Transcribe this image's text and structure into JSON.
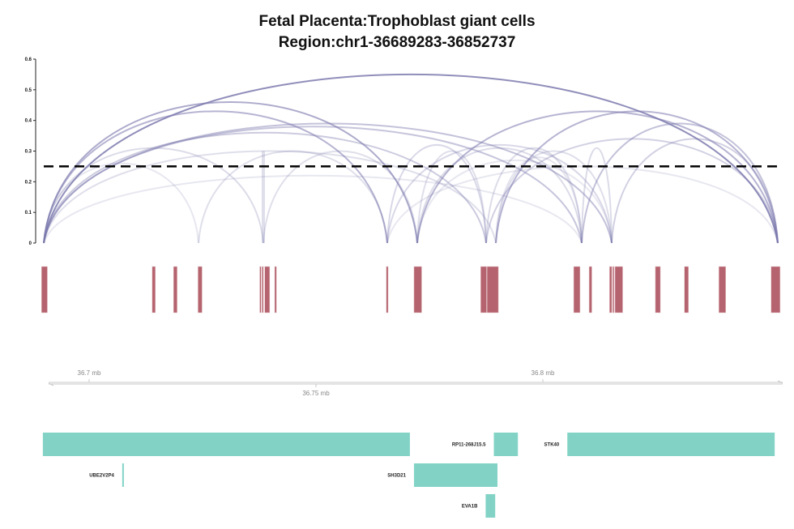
{
  "title": {
    "line1": "Fetal Placenta:Trophoblast giant cells",
    "line2": "Region:chr1-36689283-36852737"
  },
  "chart_data": {
    "type": "arc",
    "region": {
      "chrom": "chr1",
      "start": 36689283,
      "end": 36852737
    },
    "yaxis": {
      "range": [
        0,
        0.6
      ],
      "ticks": [
        0,
        0.1,
        0.2,
        0.3,
        0.4,
        0.5,
        0.6
      ],
      "tick_labels": [
        "0",
        "0.1",
        "0.2",
        "0.3",
        "0.4",
        "0.5",
        "0.6"
      ]
    },
    "threshold": 0.25,
    "colors": {
      "arc": "#7b78ad",
      "threshold": "#000000",
      "peak": "#b5636e",
      "gene": "#82d3c6",
      "axis": "#c8c8c8"
    },
    "arcs": [
      {
        "start": 36690000,
        "end": 36772321,
        "score": 0.46
      },
      {
        "start": 36690000,
        "end": 36765714,
        "score": 0.43
      },
      {
        "start": 36690000,
        "end": 36815179,
        "score": 0.39
      },
      {
        "start": 36690000,
        "end": 36808571,
        "score": 0.38
      },
      {
        "start": 36690000,
        "end": 36787500,
        "score": 0.36
      },
      {
        "start": 36690000,
        "end": 36851786,
        "score": 0.55
      },
      {
        "start": 36690000,
        "end": 36724107,
        "score": 0.26
      },
      {
        "start": 36690000,
        "end": 36789643,
        "score": 0.3
      },
      {
        "start": 36690000,
        "end": 36738393,
        "score": 0.31
      },
      {
        "start": 36690000,
        "end": 36808571,
        "score": 0.22
      },
      {
        "start": 36724107,
        "end": 36765714,
        "score": 0.3
      },
      {
        "start": 36738393,
        "end": 36738393,
        "score": 0.3
      },
      {
        "start": 36738393,
        "end": 36772321,
        "score": 0.3
      },
      {
        "start": 36765714,
        "end": 36815179,
        "score": 0.32
      },
      {
        "start": 36772321,
        "end": 36808571,
        "score": 0.31
      },
      {
        "start": 36772321,
        "end": 36851786,
        "score": 0.43
      },
      {
        "start": 36765714,
        "end": 36787500,
        "score": 0.32
      },
      {
        "start": 36772321,
        "end": 36787500,
        "score": 0.3
      },
      {
        "start": 36787500,
        "end": 36808571,
        "score": 0.31
      },
      {
        "start": 36789643,
        "end": 36851786,
        "score": 0.43
      },
      {
        "start": 36789643,
        "end": 36815179,
        "score": 0.3
      },
      {
        "start": 36787500,
        "end": 36851786,
        "score": 0.34
      },
      {
        "start": 36808571,
        "end": 36851786,
        "score": 0.39
      },
      {
        "start": 36815179,
        "end": 36851786,
        "score": 0.34
      },
      {
        "start": 36808571,
        "end": 36815179,
        "score": 0.31
      },
      {
        "start": 36789643,
        "end": 36808571,
        "score": 0.28
      },
      {
        "start": 36765714,
        "end": 36851786,
        "score": 0.25
      },
      {
        "start": 36772321,
        "end": 36815179,
        "score": 0.27
      }
    ],
    "peaks": [
      [
        36689500,
        36690800
      ],
      [
        36713900,
        36714600
      ],
      [
        36718600,
        36719400
      ],
      [
        36724000,
        36724900
      ],
      [
        36737600,
        36737900
      ],
      [
        36738100,
        36738400
      ],
      [
        36738700,
        36739800
      ],
      [
        36740900,
        36741300
      ],
      [
        36765500,
        36765900
      ],
      [
        36771600,
        36773300
      ],
      [
        36786300,
        36787600
      ],
      [
        36787700,
        36790200
      ],
      [
        36806800,
        36808200
      ],
      [
        36810200,
        36810800
      ],
      [
        36814700,
        36815200
      ],
      [
        36815400,
        36815700
      ],
      [
        36815900,
        36817600
      ],
      [
        36824800,
        36825900
      ],
      [
        36831200,
        36832100
      ],
      [
        36838800,
        36840300
      ],
      [
        36850300,
        36852300
      ]
    ],
    "genome_axis": {
      "ticks": [
        36700000,
        36750000,
        36800000
      ],
      "tick_labels": [
        "36.7 mb",
        "36.75 mb",
        "36.8 mb"
      ],
      "label_side": [
        "top",
        "bottom",
        "top"
      ]
    },
    "genes": [
      {
        "name": "",
        "start": 36689800,
        "end": 36770700,
        "row": 0
      },
      {
        "name": "RP11-268J15.5",
        "start": 36789200,
        "end": 36794500,
        "row": 0
      },
      {
        "name": "STK40",
        "start": 36805400,
        "end": 36851100,
        "row": 0
      },
      {
        "name": "UBE2V2P4",
        "start": 36707300,
        "end": 36707600,
        "row": 1
      },
      {
        "name": "SH3D21",
        "start": 36771600,
        "end": 36790000,
        "row": 1
      },
      {
        "name": "EVA1B",
        "start": 36787400,
        "end": 36789500,
        "row": 2
      }
    ]
  }
}
